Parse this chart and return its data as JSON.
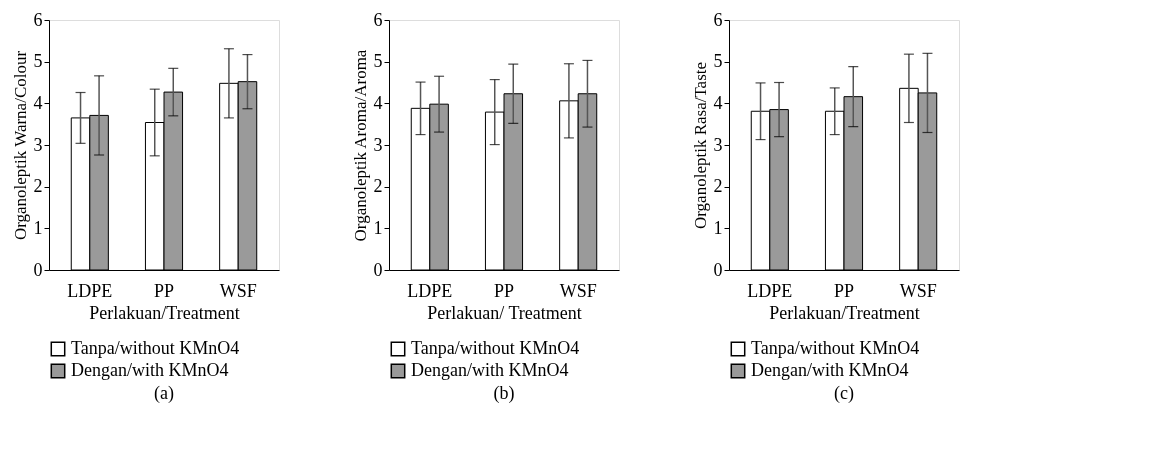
{
  "chart_data": [
    {
      "type": "bar",
      "title": "(a)",
      "xlabel": "Perlakuan/Treatment",
      "ylabel": "Organoleptik Warna/Colour",
      "categories": [
        "LDPE",
        "PP",
        "WSF"
      ],
      "ylim": [
        0,
        6
      ],
      "yticks": [
        0,
        1,
        2,
        3,
        4,
        5,
        6
      ],
      "legend": "bottom",
      "grid": false,
      "series": [
        {
          "name": "Tanpa/without KMnO4",
          "color": "#ffffff",
          "values": [
            3.65,
            3.54,
            4.48
          ],
          "errors": [
            0.61,
            0.8,
            0.83
          ]
        },
        {
          "name": "Dengan/with KMnO4",
          "color": "#9a9a9a",
          "values": [
            3.71,
            4.27,
            4.52
          ],
          "errors": [
            0.95,
            0.57,
            0.65
          ]
        }
      ]
    },
    {
      "type": "bar",
      "title": "(b)",
      "xlabel": "Perlakuan/ Treatment",
      "ylabel": "Organoleptik Aroma/Aroma",
      "categories": [
        "LDPE",
        "PP",
        "WSF"
      ],
      "ylim": [
        0,
        6
      ],
      "yticks": [
        0,
        1,
        2,
        3,
        4,
        5,
        6
      ],
      "legend": "bottom",
      "grid": false,
      "series": [
        {
          "name": "Tanpa/without KMnO4",
          "color": "#ffffff",
          "values": [
            3.88,
            3.79,
            4.06
          ],
          "errors": [
            0.63,
            0.78,
            0.89
          ]
        },
        {
          "name": "Dengan/with KMnO4",
          "color": "#9a9a9a",
          "values": [
            3.98,
            4.23,
            4.23
          ],
          "errors": [
            0.67,
            0.71,
            0.8
          ]
        }
      ]
    },
    {
      "type": "bar",
      "title": "(c)",
      "xlabel": "Perlakuan/Treatment",
      "ylabel": "Organoleptik Rasa/Taste",
      "categories": [
        "LDPE",
        "PP",
        "WSF"
      ],
      "ylim": [
        0,
        6
      ],
      "yticks": [
        0,
        1,
        2,
        3,
        4,
        5,
        6
      ],
      "legend": "bottom",
      "grid": false,
      "series": [
        {
          "name": "Tanpa/without KMnO4",
          "color": "#ffffff",
          "values": [
            3.81,
            3.81,
            4.36
          ],
          "errors": [
            0.68,
            0.56,
            0.82
          ]
        },
        {
          "name": "Dengan/with KMnO4",
          "color": "#9a9a9a",
          "values": [
            3.85,
            4.16,
            4.25
          ],
          "errors": [
            0.65,
            0.72,
            0.95
          ]
        }
      ]
    }
  ]
}
